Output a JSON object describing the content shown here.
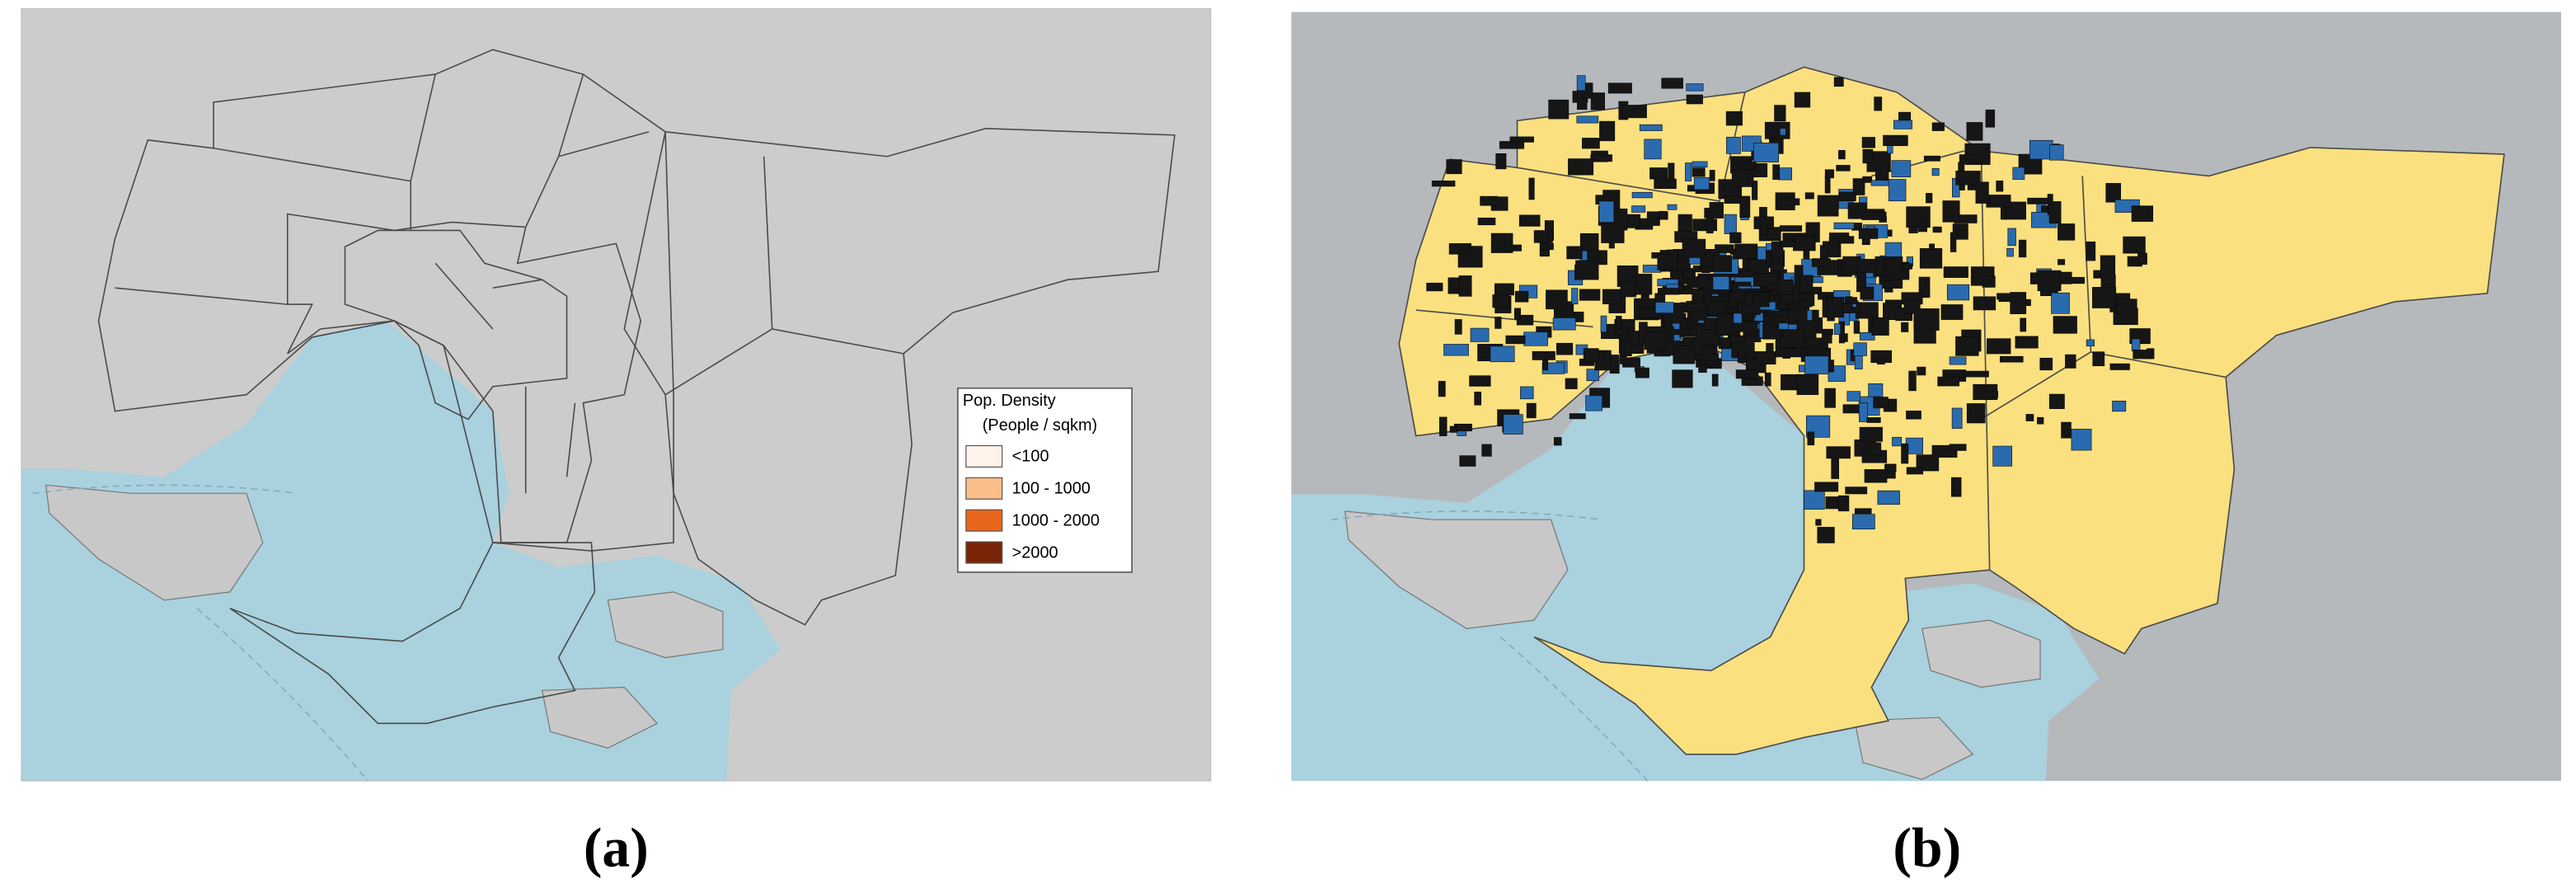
{
  "panels": [
    {
      "caption": "(a)",
      "legend": {
        "title": "Pop. Density",
        "subtitle": "(People / sqkm)",
        "items": [
          {
            "label": "<100",
            "color": "#fdf3ea"
          },
          {
            "label": "100 - 1000",
            "color": "#fbbd89"
          },
          {
            "label": "1000 - 2000",
            "color": "#e8661b"
          },
          {
            "label": ">2000",
            "color": "#7a2507"
          }
        ]
      }
    },
    {
      "caption": "(b)"
    }
  ]
}
